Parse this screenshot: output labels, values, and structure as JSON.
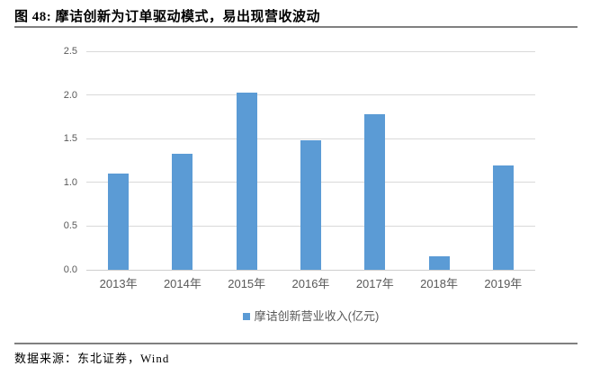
{
  "report": {
    "title": "图 48: 摩诘创新为订单驱动模式，易出现营收波动",
    "source_text": "数据来源：东北证券，Wind"
  },
  "chart_data": {
    "type": "bar",
    "title": "",
    "categories": [
      "2013年",
      "2014年",
      "2015年",
      "2016年",
      "2017年",
      "2018年",
      "2019年"
    ],
    "values": [
      1.1,
      1.33,
      2.03,
      1.48,
      1.78,
      0.15,
      1.19
    ],
    "series_name": "摩诘创新营业收入(亿元)",
    "legend_label": "摩诘创新营业收入(亿元)",
    "xlabel": "",
    "ylabel": "",
    "ylim": [
      0,
      2.5
    ],
    "yticks": [
      "0.0",
      "0.5",
      "1.0",
      "1.5",
      "2.0",
      "2.5"
    ],
    "grid": true,
    "legend_position": "bottom",
    "bar_color": "#5b9bd5",
    "gridline_color": "#d9d9d9",
    "tick_label_color": "#595959"
  }
}
